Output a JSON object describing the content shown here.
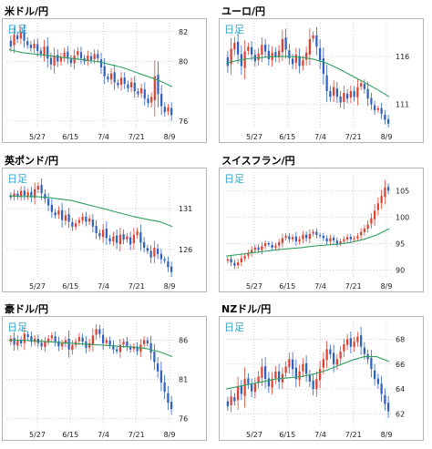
{
  "panels": [
    {
      "id": "usdjpy",
      "title": "米ドル/円",
      "period_label": "日足",
      "chart_data": {
        "type": "candlestick",
        "x_ticks": [
          "5/27",
          "6/15",
          "7/4",
          "7/21",
          "8/9"
        ],
        "y_ticks": [
          76,
          80,
          82
        ],
        "ylim": [
          75.5,
          82.6
        ],
        "moving_average": [
          80.8,
          80.6,
          80.5,
          80.4,
          80.3,
          80.2,
          80.1,
          80.0,
          79.8,
          79.6,
          79.3,
          79.0,
          78.7,
          78.3
        ],
        "closes": [
          81.0,
          81.8,
          81.5,
          82.0,
          81.4,
          81.1,
          80.9,
          81.2,
          80.7,
          80.5,
          81.0,
          80.2,
          79.8,
          80.4,
          80.0,
          80.3,
          80.6,
          80.2,
          79.9,
          80.4,
          80.7,
          80.2,
          80.0,
          80.4,
          80.1,
          80.5,
          80.2,
          79.6,
          79.0,
          78.8,
          79.2,
          78.6,
          78.4,
          78.9,
          78.5,
          78.2,
          78.6,
          78.0,
          77.8,
          78.2,
          77.5,
          77.2,
          77.6,
          79.0,
          77.8,
          77.0,
          76.6,
          76.9,
          76.4
        ]
      }
    },
    {
      "id": "eurjpy",
      "title": "ユーロ/円",
      "period_label": "日足",
      "chart_data": {
        "type": "candlestick",
        "x_ticks": [
          "5/27",
          "6/15",
          "7/4",
          "7/21",
          "8/9"
        ],
        "y_ticks": [
          111,
          116
        ],
        "ylim": [
          108.5,
          119.5
        ],
        "moving_average": [
          115.3,
          115.6,
          115.8,
          115.9,
          116.0,
          116.0,
          115.9,
          115.7,
          115.3,
          114.7,
          114.0,
          113.3,
          112.6,
          111.8
        ],
        "closes": [
          115.0,
          116.8,
          117.4,
          116.2,
          115.0,
          116.5,
          117.0,
          116.2,
          115.5,
          116.3,
          117.2,
          116.5,
          115.7,
          116.4,
          115.9,
          116.6,
          117.8,
          116.7,
          115.8,
          115.2,
          116.2,
          115.0,
          115.6,
          116.4,
          117.8,
          118.2,
          117.0,
          115.6,
          114.2,
          112.4,
          111.8,
          112.8,
          111.8,
          111.2,
          112.2,
          111.6,
          112.4,
          111.8,
          112.8,
          113.2,
          112.6,
          111.6,
          111.0,
          110.4,
          110.6,
          110.0,
          109.4,
          109.0
        ]
      }
    },
    {
      "id": "gbpjpy",
      "title": "英ポンド/円",
      "period_label": "日足",
      "chart_data": {
        "type": "candlestick",
        "x_ticks": [
          "5/27",
          "6/15",
          "7/4",
          "7/21",
          "8/9"
        ],
        "y_ticks": [
          126,
          131
        ],
        "ylim": [
          122.5,
          135.5
        ],
        "moving_average": [
          132.6,
          132.5,
          132.5,
          132.4,
          132.2,
          132.0,
          131.6,
          131.2,
          130.8,
          130.4,
          130.0,
          129.7,
          129.4,
          128.8
        ],
        "closes": [
          132.4,
          132.9,
          132.5,
          133.2,
          132.6,
          133.0,
          132.4,
          133.4,
          133.8,
          132.9,
          132.2,
          131.4,
          130.6,
          130.2,
          130.8,
          129.6,
          130.2,
          129.4,
          128.8,
          129.2,
          129.6,
          130.0,
          129.4,
          129.8,
          128.8,
          128.0,
          127.6,
          128.4,
          127.4,
          127.0,
          127.6,
          126.8,
          127.8,
          127.2,
          127.6,
          126.6,
          127.8,
          128.2,
          126.8,
          126.2,
          125.8,
          125.0,
          126.2,
          125.4,
          124.8,
          124.6,
          123.8,
          123.2
        ]
      }
    },
    {
      "id": "chfjpy",
      "title": "スイスフラン/円",
      "period_label": "日足",
      "chart_data": {
        "type": "candlestick",
        "x_ticks": [
          "5/27",
          "6/15",
          "7/4",
          "7/21",
          "8/9"
        ],
        "y_ticks": [
          90,
          95,
          100,
          105
        ],
        "ylim": [
          88.5,
          108.5
        ],
        "moving_average": [
          92.6,
          92.9,
          93.2,
          93.5,
          93.8,
          94.0,
          94.2,
          94.5,
          94.7,
          94.9,
          95.2,
          95.8,
          96.6,
          97.8
        ],
        "closes": [
          92.0,
          91.4,
          90.8,
          91.4,
          92.2,
          92.6,
          93.2,
          93.8,
          94.2,
          93.8,
          94.5,
          95.0,
          94.8,
          94.2,
          94.6,
          95.2,
          96.0,
          96.4,
          95.8,
          96.2,
          95.4,
          95.8,
          96.6,
          96.0,
          96.8,
          97.2,
          96.6,
          96.4,
          96.0,
          95.4,
          96.0,
          95.6,
          95.0,
          95.4,
          95.8,
          96.2,
          95.8,
          96.0,
          96.4,
          97.2,
          97.8,
          98.6,
          99.8,
          101.2,
          102.6,
          104.0,
          105.6,
          105.0
        ]
      }
    },
    {
      "id": "audjpy",
      "title": "豪ドル/円",
      "period_label": "日足",
      "chart_data": {
        "type": "candlestick",
        "x_ticks": [
          "5/27",
          "6/15",
          "7/4",
          "7/21",
          "8/9"
        ],
        "y_ticks": [
          76,
          81,
          86
        ],
        "ylim": [
          75.0,
          88.5
        ],
        "moving_average": [
          86.0,
          86.0,
          85.9,
          85.8,
          85.7,
          85.6,
          85.5,
          85.4,
          85.3,
          85.2,
          85.1,
          84.9,
          84.5,
          83.9
        ],
        "closes": [
          86.2,
          85.4,
          86.0,
          85.6,
          86.8,
          86.4,
          85.8,
          86.2,
          85.6,
          85.2,
          85.8,
          86.2,
          86.6,
          85.8,
          85.2,
          85.6,
          86.0,
          84.8,
          85.4,
          85.8,
          86.4,
          85.8,
          85.0,
          85.6,
          86.6,
          87.4,
          86.8,
          85.6,
          86.0,
          85.4,
          84.8,
          84.6,
          85.4,
          85.8,
          85.2,
          84.8,
          85.2,
          84.6,
          85.4,
          86.0,
          85.6,
          84.4,
          83.2,
          82.0,
          80.6,
          79.4,
          78.0,
          77.2
        ]
      }
    },
    {
      "id": "nzdjpy",
      "title": "NZドル/円",
      "period_label": "日足",
      "chart_data": {
        "type": "candlestick",
        "x_ticks": [
          "5/27",
          "6/15",
          "7/4",
          "7/21",
          "8/9"
        ],
        "y_ticks": [
          62,
          64,
          66,
          68
        ],
        "ylim": [
          61.0,
          69.5
        ],
        "moving_average": [
          64.0,
          64.2,
          64.4,
          64.6,
          64.8,
          64.9,
          65.0,
          65.2,
          65.5,
          65.9,
          66.3,
          66.6,
          66.6,
          66.2
        ],
        "closes": [
          62.6,
          63.4,
          63.0,
          64.2,
          63.6,
          64.8,
          64.4,
          63.8,
          64.4,
          65.0,
          65.8,
          64.8,
          64.2,
          64.8,
          65.4,
          64.6,
          65.2,
          65.8,
          66.4,
          65.6,
          64.8,
          65.4,
          66.0,
          65.2,
          64.6,
          64.0,
          64.8,
          65.6,
          66.4,
          67.2,
          66.8,
          66.0,
          66.4,
          67.0,
          67.6,
          68.0,
          67.4,
          67.8,
          68.2,
          67.4,
          66.8,
          66.4,
          65.6,
          64.8,
          64.4,
          63.6,
          62.8,
          62.2
        ]
      }
    }
  ],
  "colors": {
    "up": "#e04030",
    "down": "#3060c0",
    "moving_average": "#30a060",
    "grid": "#a8b8c8",
    "period_label": "#33a6cc",
    "frame": "#b4b4b4"
  }
}
